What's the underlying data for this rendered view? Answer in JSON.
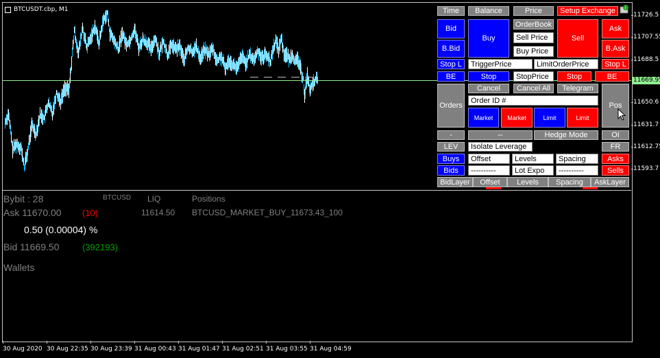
{
  "chart": {
    "title": "BTCUSDT.cbp, M1",
    "current_price": "11669.95",
    "price_levels": [
      "11726.5",
      "11707.55",
      "11688.5",
      "11650.6",
      "11631.7",
      "11612.75",
      "11593.7"
    ],
    "time_labels": [
      "30 Aug 2020",
      "30 Aug 22:35",
      "30 Aug 23:39",
      "31 Aug 00:43",
      "31 Aug 01:47",
      "31 Aug 02:51",
      "31 Aug 03:55",
      "31 Aug 04:59"
    ],
    "colors": {
      "candles": "#00bfff",
      "price_line": "#90ee90",
      "background": "#000000",
      "grid": "#c8c8c8"
    }
  },
  "panel": {
    "time": "Time",
    "balance": "Balance",
    "price": "Price",
    "setup_exchange": "Setup Exchange",
    "bid": "Bid",
    "buy": "Buy",
    "orderbook": "OrderBook",
    "sell_price": "Sell Price",
    "buy_price": "Buy Price",
    "sell": "Sell",
    "ask": "Ask",
    "b_bid": "B.Bid",
    "b_ask": "B.Ask",
    "stop_l_left": "Stop L",
    "trigger_price": "TriggerPrice",
    "limit_order_price": "LimitOrderPrice",
    "stop_l_right": "Stop L",
    "be_left": "BE",
    "stop_blue": "Stop",
    "stop_price": "StopPrice",
    "stop_red": "Stop",
    "be_right": "BE",
    "orders": "Orders",
    "cancel": "Cancel",
    "cancel_all": "Cancel All",
    "telegram": "Telegram",
    "order_id": "Order ID #",
    "pos": "Pos",
    "market_blue": "Market",
    "market_red": "Market",
    "limit_blue": "Limit",
    "limit_red": "Limit",
    "minus": "-",
    "dash_dash": "--",
    "hedge_mode": "Hedge Mode",
    "oi": "OI",
    "lev": "LEV",
    "isolate_leverage": "Isolate Leverage",
    "fr": "FR",
    "buys": "Buys",
    "offset": "Offset",
    "levels": "Levels",
    "spacing": "Spacing",
    "asks": "Asks",
    "bids": "Bids",
    "dashes1": "----------",
    "lot_expo": "Lot Expo",
    "dashes2": "----------",
    "sells": "Sells",
    "bidlayer": "BidLayer",
    "offset2": "Offset",
    "levels2": "Levels",
    "spacing2": "Spacing",
    "asklayer": "AskLayer"
  },
  "info": {
    "exchange": "Bybit : 28",
    "symbol": "BTCUSD",
    "liq_header": "LIQ",
    "positions_header": "Positions",
    "ask_label": "Ask 11670.00",
    "ask_size": "(10)",
    "liq_value": "11614.50",
    "position_value": "BTCUSD_MARKET_BUY_11673.43_100",
    "spread": "0.50 (0.00004) %",
    "bid_label": "Bid 11669.50",
    "bid_size": "(392193)",
    "wallets": "Wallets",
    "colors": {
      "ask_size": "#ff0000",
      "bid_size": "#00a000",
      "muted": "#808080"
    }
  }
}
